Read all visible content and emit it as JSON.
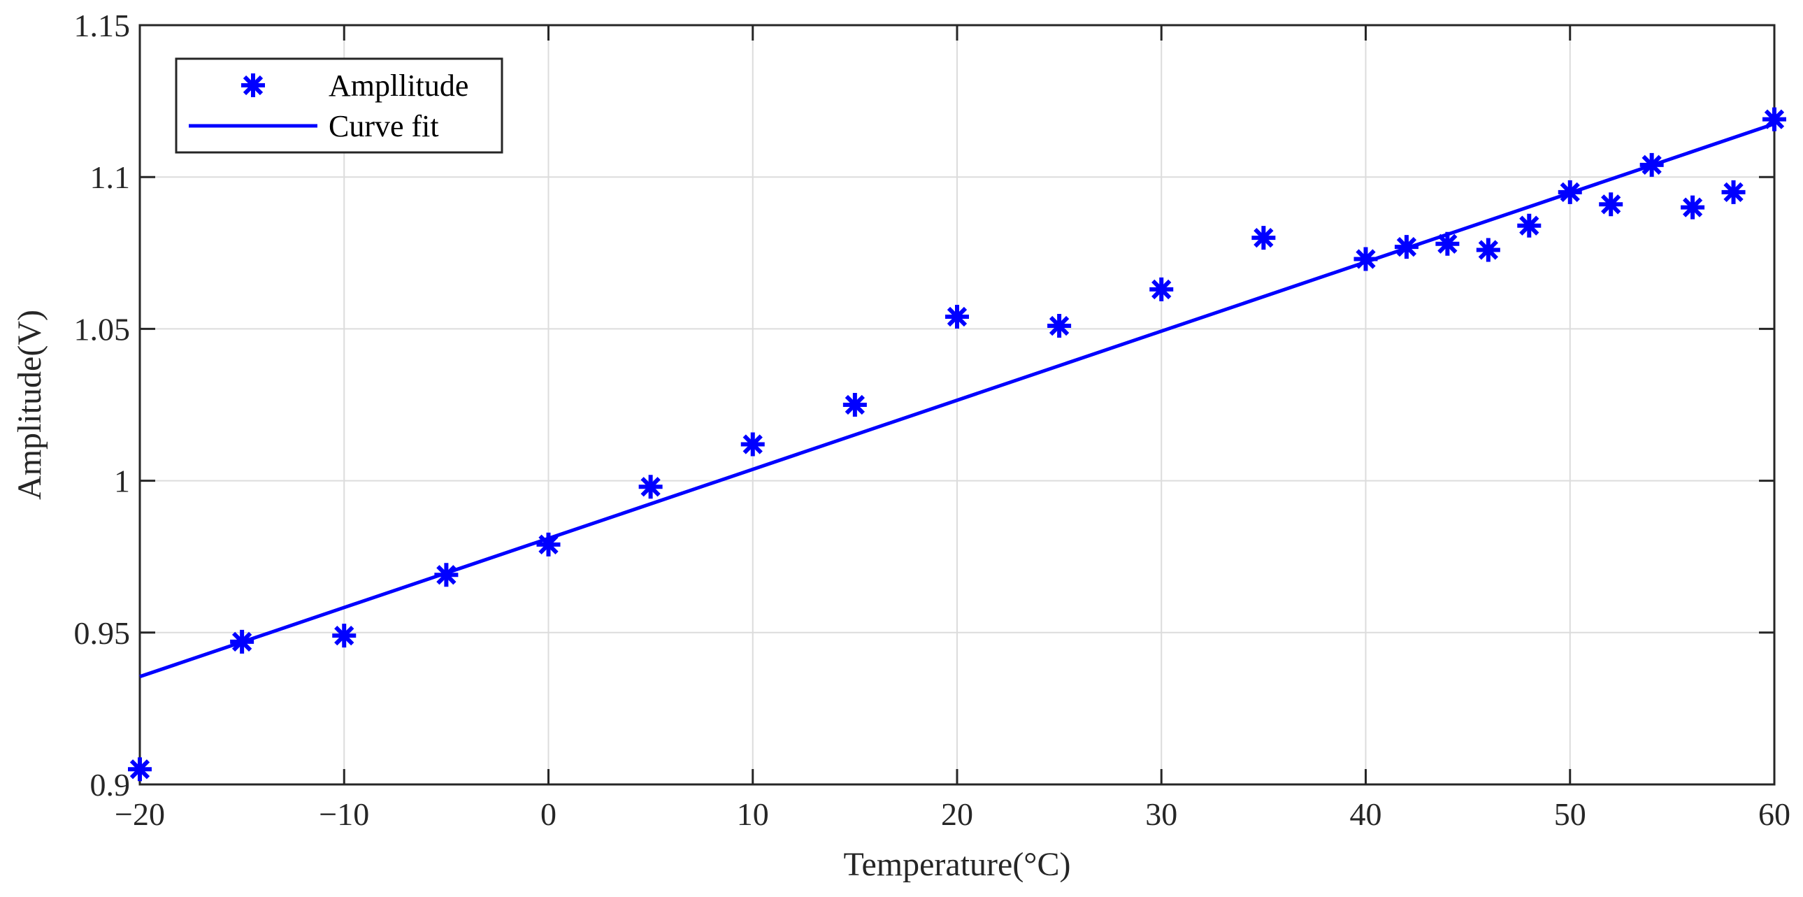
{
  "chart_data": {
    "type": "scatter",
    "title": "",
    "xlabel": "Temperature(°C)",
    "ylabel": "Amplitude(V)",
    "xlim": [
      -20,
      60
    ],
    "ylim": [
      0.9,
      1.15
    ],
    "xticks": [
      -20,
      -10,
      0,
      10,
      20,
      30,
      40,
      50,
      60
    ],
    "xtick_labels": [
      "−20",
      "−10",
      "0",
      "10",
      "20",
      "30",
      "40",
      "50",
      "60"
    ],
    "yticks": [
      0.9,
      0.95,
      1.0,
      1.05,
      1.1,
      1.15
    ],
    "ytick_labels": [
      "0.9",
      "0.95",
      "1",
      "1.05",
      "1.1",
      "1.15"
    ],
    "grid": true,
    "legend_position": "top-left",
    "series": [
      {
        "name": "Ampllitude",
        "kind": "marker",
        "marker": "asterisk",
        "color": "#0000ff",
        "x": [
          -20,
          -15,
          -10,
          -5,
          0,
          5,
          10,
          15,
          20,
          25,
          30,
          35,
          40,
          42,
          44,
          46,
          48,
          50,
          52,
          54,
          56,
          58,
          60
        ],
        "y": [
          0.905,
          0.947,
          0.949,
          0.969,
          0.979,
          0.998,
          1.012,
          1.025,
          1.054,
          1.051,
          1.063,
          1.08,
          1.073,
          1.077,
          1.078,
          1.076,
          1.084,
          1.095,
          1.091,
          1.104,
          1.09,
          1.095,
          1.119
        ]
      },
      {
        "name": "Curve fit",
        "kind": "line",
        "color": "#0000ff",
        "x": [
          -20,
          60
        ],
        "y": [
          0.9355,
          1.1175
        ]
      }
    ]
  }
}
